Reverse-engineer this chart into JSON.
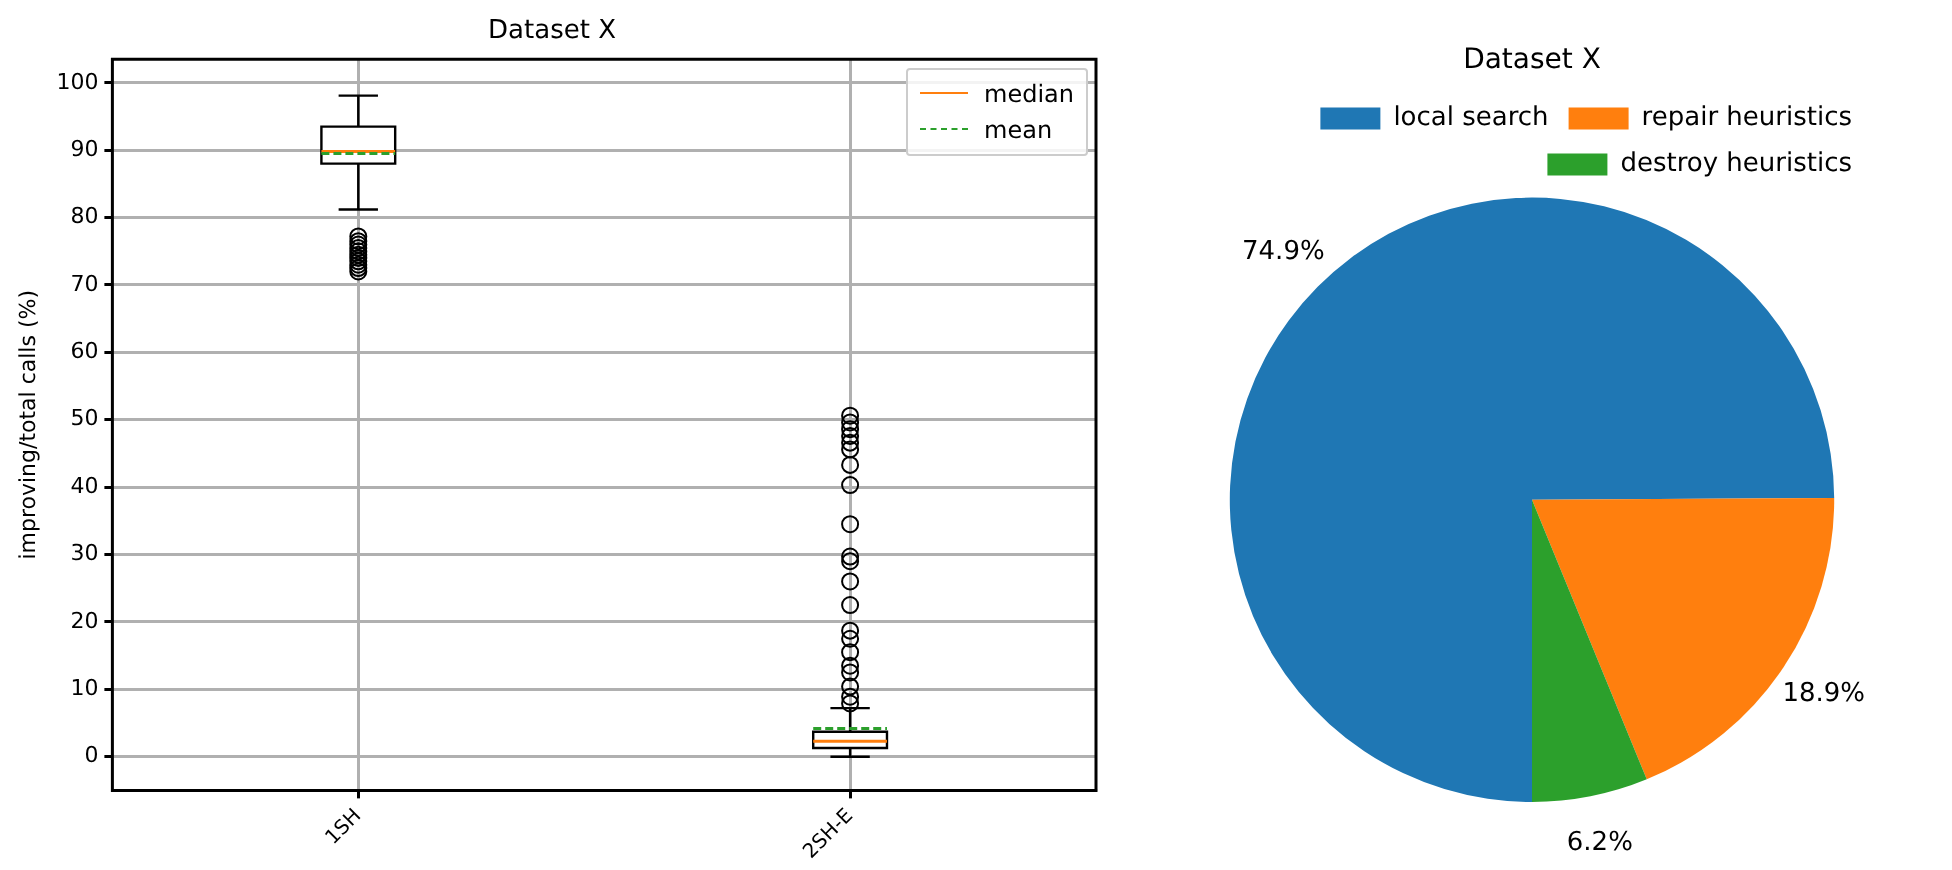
{
  "chart_data": [
    {
      "type": "box",
      "title": "Dataset X",
      "ylabel": "improving/total calls (%)",
      "categories": [
        "1SH",
        "2SH-E"
      ],
      "boxes": [
        {
          "low": 81.2,
          "q1": 88.0,
          "median": 89.8,
          "q3": 93.5,
          "high": 98.1,
          "mean": 89.5,
          "outliers": [
            77.2,
            76.5,
            76,
            75.5,
            75,
            74.5,
            74,
            73.5,
            73,
            72.5,
            72
          ]
        },
        {
          "low": 0,
          "q1": 1.3,
          "median": 2.3,
          "q3": 3.7,
          "high": 7.2,
          "mean": 4.2,
          "outliers": [
            50.6,
            49.6,
            48.6,
            47.6,
            46.6,
            45.6,
            43.3,
            40.3,
            34.5,
            29.7,
            29.0,
            26.0,
            22.5,
            18.7,
            17.5,
            15.5,
            13.5,
            12.5,
            10.4,
            8.9,
            7.9
          ]
        }
      ],
      "ylim": [
        -5,
        103.5
      ],
      "yticks": [
        0,
        10,
        20,
        30,
        40,
        50,
        60,
        70,
        80,
        90,
        100
      ],
      "grid": true,
      "marker": "circle",
      "annotations": [
        "median",
        "mean"
      ]
    },
    {
      "type": "pie",
      "title": "Dataset X",
      "categories": [
        "local search",
        "repair heuristics",
        "destroy heuristics"
      ],
      "values": [
        74.9,
        18.9,
        6.2
      ],
      "colors": [
        "#1f77b4",
        "#ff7f0e",
        "#2ca02c"
      ],
      "value_labels": [
        "74.9%",
        "18.9%",
        "6.2%"
      ],
      "legend": "top right"
    }
  ]
}
